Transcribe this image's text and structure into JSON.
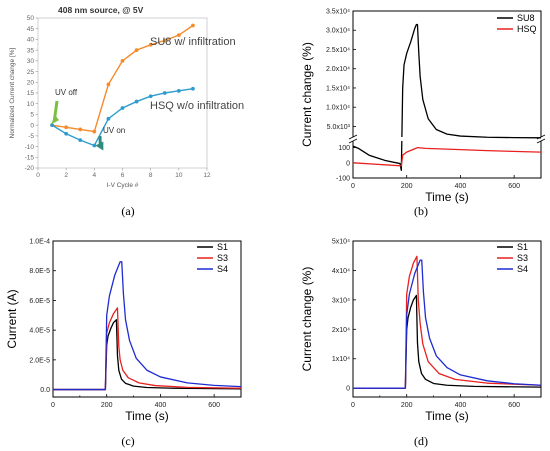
{
  "captions": [
    "(a)",
    "(b)",
    "(c)",
    "(d)"
  ],
  "chart_data": [
    {
      "type": "line",
      "panel": "(a)",
      "title": "408 nm source, @ 5V",
      "xlabel": "I-V Cycle #",
      "ylabel": "Normalized Current change [%]",
      "xlim": [
        0,
        12
      ],
      "ylim": [
        -20,
        50
      ],
      "xticks": [
        "0",
        "2",
        "4",
        "6",
        "8",
        "10",
        "12"
      ],
      "yticks": [
        "-20",
        "-15",
        "-10",
        "-5",
        "0",
        "5",
        "10",
        "15",
        "20",
        "25",
        "30",
        "35",
        "40",
        "45",
        "50"
      ],
      "grid": false,
      "colors": {
        "SU8": "#f58b2b",
        "HSQ": "#2e9ccf",
        "arrow": "#2f8b7d"
      },
      "series": [
        {
          "name": "SU8 w/ infiltration",
          "x": [
            1,
            2,
            3,
            4,
            5,
            6,
            7,
            8,
            9,
            10,
            11
          ],
          "values": [
            0,
            -1,
            -2,
            -3,
            19,
            30,
            35,
            37.5,
            39.5,
            42,
            46.5
          ]
        },
        {
          "name": "HSQ w/o infiltration",
          "x": [
            1,
            2,
            3,
            4,
            5,
            6,
            7,
            8,
            9,
            10,
            11
          ],
          "values": [
            0,
            -4,
            -7,
            -9.5,
            3,
            8,
            11,
            13.5,
            15,
            16,
            17
          ]
        }
      ],
      "annotations": [
        "UV off",
        "UV on"
      ]
    },
    {
      "type": "line",
      "panel": "(b)",
      "xlabel": "Time (s)",
      "ylabel": "Current change (%)",
      "xlim": [
        0,
        700
      ],
      "scale": "broken y-axis",
      "xticks": [
        "0",
        "200",
        "400",
        "600"
      ],
      "yticks_lower": [
        "-100",
        "0",
        "100"
      ],
      "yticks_upper": [
        "5x10³",
        "5.0x10³",
        "1.0x10⁴",
        "1.5x10⁴",
        "2.0x10⁴",
        "2.5x10⁴",
        "3.0x10⁴",
        "3.5x10⁴"
      ],
      "legend": "top-right",
      "series": [
        {
          "name": "SU8",
          "color": "#000000",
          "x": [
            0,
            20,
            60,
            120,
            175,
            180,
            185,
            190,
            200,
            215,
            230,
            236,
            240,
            245,
            250,
            260,
            280,
            310,
            350,
            400,
            500,
            600,
            700
          ],
          "values": [
            110,
            95,
            50,
            15,
            -5,
            -50,
            15000,
            21000,
            24000,
            27000,
            30500,
            31500,
            31500,
            24000,
            18000,
            12000,
            7000,
            4200,
            3000,
            2500,
            2200,
            2100,
            2050
          ]
        },
        {
          "name": "HSQ",
          "color": "#e8211f",
          "x": [
            0,
            180,
            185,
            200,
            240,
            270,
            350,
            500,
            700
          ],
          "values": [
            0,
            -20,
            50,
            70,
            100,
            95,
            90,
            80,
            70
          ]
        }
      ]
    },
    {
      "type": "line",
      "panel": "(c)",
      "xlabel": "Time (s)",
      "ylabel": "Current (A)",
      "xlim": [
        0,
        700
      ],
      "ylim": [
        -5e-06,
        0.0001
      ],
      "xticks": [
        "0",
        "200",
        "400",
        "600"
      ],
      "yticks": [
        "0.0",
        "2.0E-5",
        "4.0E-5",
        "6.0E-5",
        "8.0E-5",
        "1.0E-4"
      ],
      "legend": "top-right",
      "series": [
        {
          "name": "S1",
          "color": "#000000",
          "x": [
            0,
            100,
            195,
            200,
            205,
            215,
            225,
            236,
            240,
            245,
            255,
            270,
            300,
            350,
            450,
            700
          ],
          "values": [
            0,
            0,
            0,
            3e-05,
            3.6e-05,
            4.1e-05,
            4.5e-05,
            4.7e-05,
            2.3e-05,
            1.3e-05,
            7e-06,
            4.2e-06,
            2.3e-06,
            1.4e-06,
            9e-07,
            5e-07
          ]
        },
        {
          "name": "S3",
          "color": "#e8211f",
          "x": [
            0,
            100,
            195,
            200,
            210,
            225,
            240,
            245,
            250,
            260,
            280,
            320,
            380,
            500,
            700
          ],
          "values": [
            0,
            0,
            0,
            3.8e-05,
            4.5e-05,
            5.1e-05,
            5.5e-05,
            2.9e-05,
            2e-05,
            1.3e-05,
            8e-06,
            4.5e-06,
            2.7e-06,
            1.5e-06,
            9e-07
          ]
        },
        {
          "name": "S4",
          "color": "#1f2bd1",
          "x": [
            0,
            100,
            195,
            200,
            210,
            230,
            250,
            256,
            262,
            270,
            285,
            310,
            350,
            400,
            500,
            600,
            700
          ],
          "values": [
            0,
            0,
            0,
            5e-05,
            6.3e-05,
            7.7e-05,
            8.6e-05,
            8.6e-05,
            6.5e-05,
            4.7e-05,
            3.3e-05,
            2.1e-05,
            1.3e-05,
            8.5e-06,
            4.5e-06,
            2.8e-06,
            2e-06
          ]
        }
      ]
    },
    {
      "type": "line",
      "panel": "(d)",
      "xlabel": "Time (s)",
      "ylabel": "Current change (%)",
      "xlim": [
        0,
        700
      ],
      "ylim": [
        -3000,
        50000
      ],
      "xticks": [
        "0",
        "200",
        "400",
        "600"
      ],
      "yticks": [
        "0",
        "1x10⁴",
        "2x10⁴",
        "3x10⁴",
        "4x10⁴",
        "5x10⁴"
      ],
      "legend": "top-right",
      "series": [
        {
          "name": "S1",
          "color": "#000000",
          "x": [
            0,
            100,
            195,
            200,
            205,
            215,
            225,
            236,
            240,
            245,
            255,
            270,
            300,
            350,
            450,
            700
          ],
          "values": [
            0,
            0,
            0,
            20000,
            24000,
            27500,
            30000,
            31500,
            15500,
            9000,
            5000,
            3000,
            1600,
            1000,
            600,
            350
          ]
        },
        {
          "name": "S3",
          "color": "#e8211f",
          "x": [
            0,
            100,
            195,
            200,
            210,
            225,
            238,
            243,
            250,
            260,
            280,
            320,
            380,
            500,
            700
          ],
          "values": [
            0,
            0,
            0,
            32000,
            38000,
            42500,
            44800,
            30000,
            22000,
            15000,
            9000,
            5000,
            3000,
            1700,
            1000
          ]
        },
        {
          "name": "S4",
          "color": "#1f2bd1",
          "x": [
            0,
            100,
            195,
            200,
            210,
            230,
            250,
            256,
            262,
            270,
            285,
            310,
            350,
            400,
            500,
            600,
            700
          ],
          "values": [
            0,
            0,
            0,
            25000,
            32000,
            39000,
            43500,
            43500,
            33000,
            24000,
            17000,
            11000,
            7000,
            4500,
            2500,
            1500,
            1000
          ]
        }
      ]
    }
  ]
}
